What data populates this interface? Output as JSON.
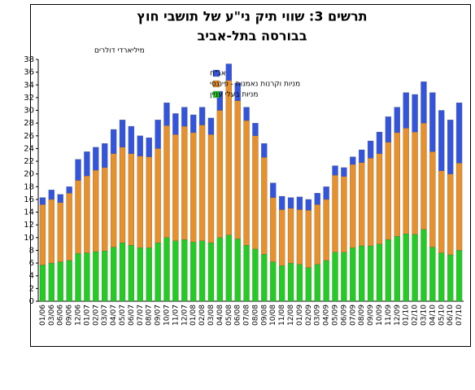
{
  "chart_data": {
    "type": "stacked_bar",
    "title": "תרשים 3: שווי תיק ני\"ע של תושבי חוץ",
    "subtitle": "בבורסה בתל-אביב",
    "y_label": "מיליארדי דולרים",
    "categories": [
      "01/06",
      "03/06",
      "06/06",
      "09/06",
      "12/06",
      "01/07",
      "02/07",
      "03/07",
      "04/07",
      "05/07",
      "06/07",
      "07/07",
      "08/07",
      "09/07",
      "10/07",
      "11/07",
      "12/07",
      "01/08",
      "02/08",
      "03/08",
      "04/08",
      "05/08",
      "06/08",
      "07/08",
      "08/08",
      "09/08",
      "10/08",
      "11/08",
      "12/08",
      "01/09",
      "02/09",
      "03/09",
      "04/09",
      "05/09",
      "06/09",
      "07/09",
      "08/09",
      "09/09",
      "10/09",
      "11/09",
      "12/09",
      "01/10",
      "02/10",
      "03/10",
      "04/10",
      "05/10",
      "06/10",
      "07/10"
    ],
    "series": [
      {
        "name": "מניות בעלי עניין",
        "color": "#22cc22",
        "values": [
          5.7,
          6,
          6.2,
          6.4,
          7.5,
          7.6,
          7.8,
          7.9,
          8.5,
          9.2,
          8.8,
          8.4,
          8.4,
          9.2,
          10,
          9.5,
          9.7,
          9.3,
          9.5,
          9.2,
          10,
          10.4,
          9.8,
          8.8,
          8.2,
          7.4,
          6.2,
          5.6,
          6,
          5.8,
          5.3,
          5.8,
          6.4,
          7.7,
          7.7,
          8.4,
          8.7,
          8.7,
          9,
          9.7,
          10.2,
          10.6,
          10.5,
          11.3,
          8.5,
          7.6,
          7.3,
          8
        ]
      },
      {
        "name": "מניות וקרנות נאמנות - פיננסי",
        "color": "#e8902a",
        "values": [
          9.5,
          10,
          9.3,
          10.6,
          11.5,
          12.1,
          12.8,
          13.1,
          14.7,
          15,
          14.4,
          14.4,
          14.3,
          14.8,
          17.6,
          16.7,
          17.8,
          17.2,
          18.2,
          17,
          20,
          24.3,
          21.7,
          19.6,
          17.8,
          15.2,
          10.1,
          8.8,
          8.6,
          8.6,
          9,
          9.4,
          9.6,
          12.1,
          11.9,
          13.1,
          13.1,
          13.8,
          14.2,
          15.3,
          16.3,
          16.6,
          16.1,
          16.7,
          15,
          12.9,
          12.7,
          13.7
        ]
      },
      {
        "name": "אג\"ח",
        "color": "#3355dd",
        "values": [
          1.1,
          1.5,
          1.3,
          1,
          3.3,
          3.8,
          3.6,
          3.8,
          3.8,
          4.3,
          4.3,
          3.2,
          3,
          4.5,
          3.6,
          3.3,
          3,
          2.8,
          2.8,
          2.6,
          3,
          2.6,
          2.8,
          2.1,
          2,
          2.2,
          2.3,
          2.1,
          1.7,
          2,
          1.7,
          1.8,
          2,
          1.5,
          1.4,
          1.2,
          2,
          2.7,
          3.4,
          4,
          4,
          5.6,
          5.9,
          6.5,
          9.3,
          9.5,
          8.5,
          9.5
        ]
      }
    ],
    "ylim": [
      0,
      38
    ],
    "yticks": [
      0,
      2,
      4,
      6,
      8,
      10,
      12,
      14,
      16,
      18,
      20,
      22,
      24,
      26,
      28,
      30,
      32,
      34,
      36,
      38
    ],
    "grid": false,
    "legend": "top-left"
  }
}
